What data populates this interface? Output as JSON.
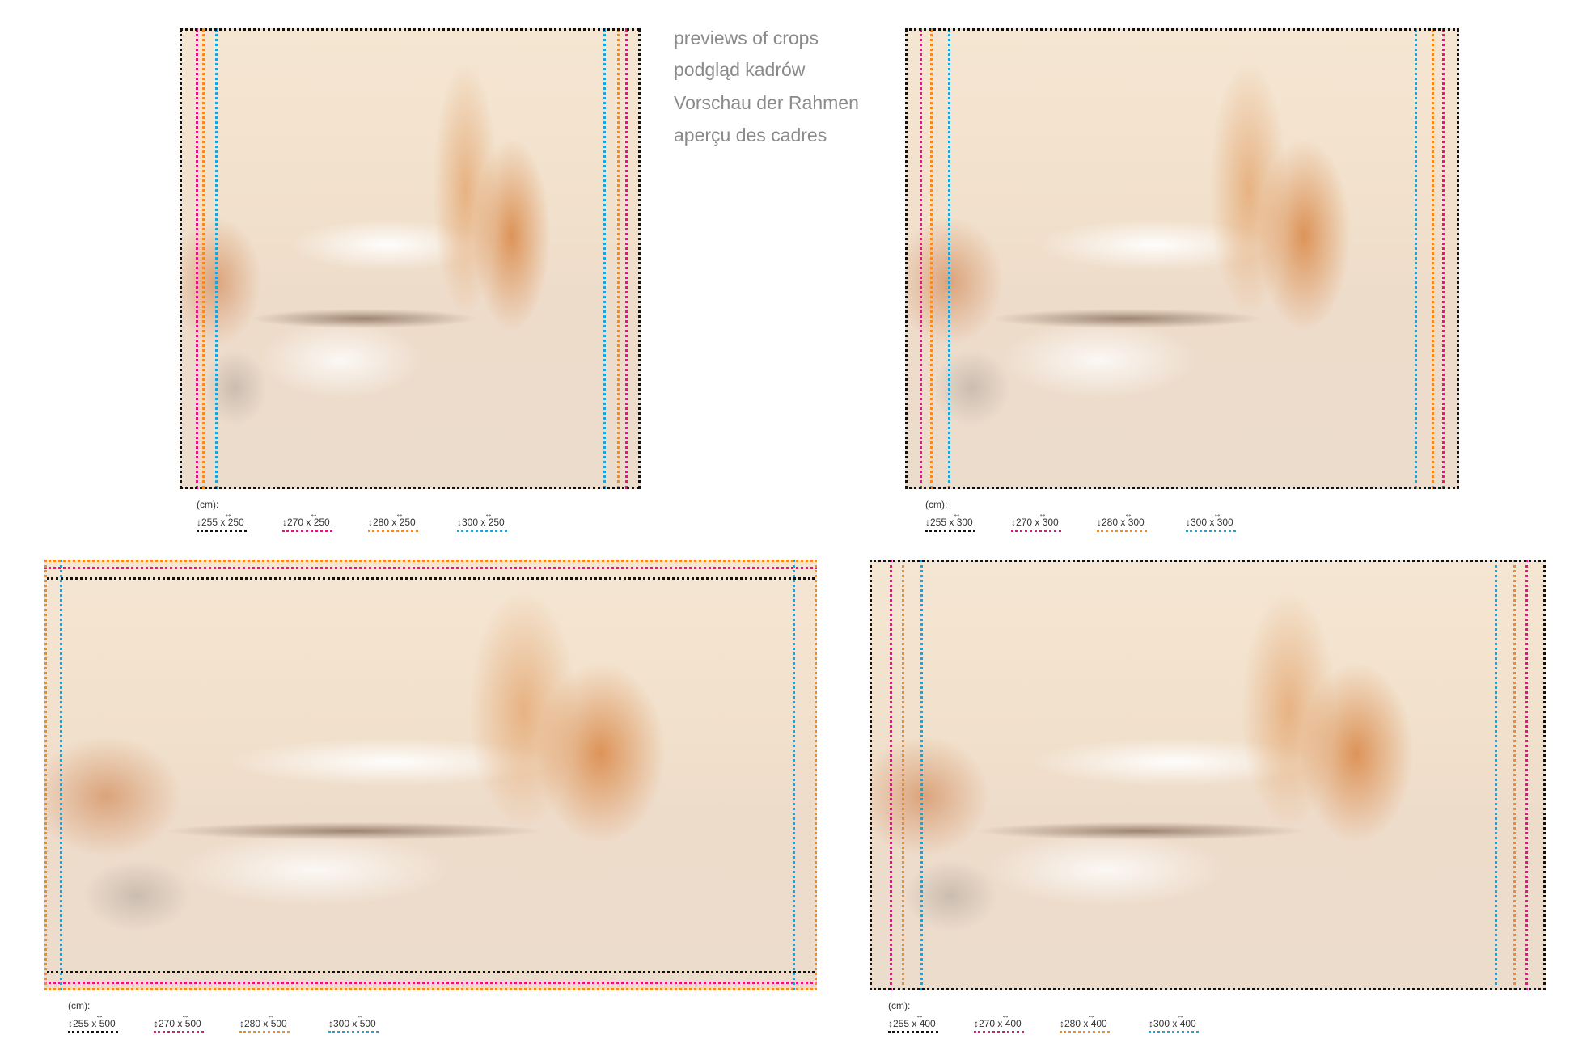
{
  "heading": [
    "previews of crops",
    "podgląd kadrów",
    "Vorschau der Rahmen",
    "aperçu des cadres"
  ],
  "colors": {
    "black": "#111111",
    "magenta": "#e0157f",
    "orange": "#f28a1f",
    "blue": "#1ea0d8"
  },
  "unit_label": "(cm):",
  "icons": {
    "height": "vertical-arrow-icon",
    "width": "horizontal-arrow-icon"
  },
  "previews": [
    {
      "sizes": [
        "255 x 250",
        "270 x 250",
        "280 x 250",
        "300 x 250"
      ]
    },
    {
      "sizes": [
        "255 x 300",
        "270 x 300",
        "280 x 300",
        "300 x 300"
      ]
    },
    {
      "sizes": [
        "255 x 500",
        "270 x 500",
        "280 x 500",
        "300 x 500"
      ]
    },
    {
      "sizes": [
        "255 x 400",
        "270 x 400",
        "280 x 400",
        "300 x 400"
      ]
    }
  ]
}
